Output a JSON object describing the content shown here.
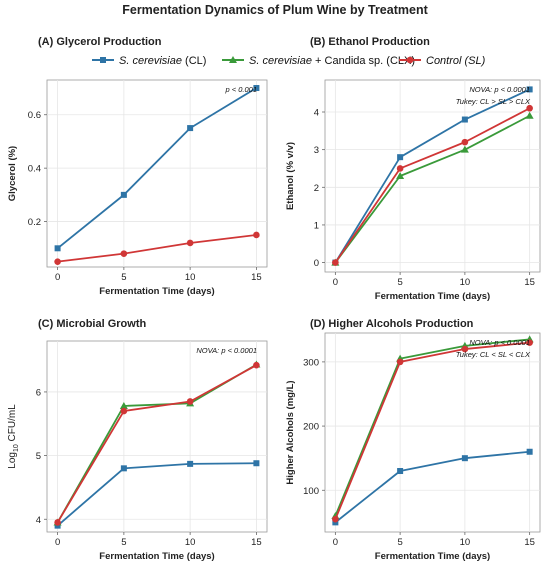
{
  "figure": {
    "title": "Fermentation Dynamics of Plum Wine by Treatment"
  },
  "legend": {
    "items": [
      {
        "italic": "S. cerevisiae",
        "rest": " (CL)",
        "color": "#2e74a6",
        "marker": "square"
      },
      {
        "italic": "S. cerevisiae",
        "rest": " + Candida sp. (CLX)",
        "color": "#3a9a3a",
        "marker": "triangle"
      },
      {
        "italic": "Control (SL)",
        "rest": "",
        "color": "#d03636",
        "marker": "circle"
      }
    ]
  },
  "chart_data": [
    {
      "panel": "A",
      "type": "line",
      "title": "Glycerol Production",
      "xlabel": "Fermentation Time (days)",
      "ylabel": "Glycerol (%)",
      "x": [
        0,
        5,
        10,
        15
      ],
      "xticks": [
        0,
        5,
        10,
        15
      ],
      "yticks": [
        0.2,
        0.4,
        0.6
      ],
      "ytick_labels": [
        "0.2",
        "0.4",
        "0.6"
      ],
      "xlim": [
        -0.8,
        15.8
      ],
      "ylim": [
        0.03,
        0.73
      ],
      "grid": true,
      "annotations": [
        "p < 0.001"
      ],
      "series": [
        {
          "name": "S. cerevisiae (CL)",
          "color": "#2e74a6",
          "marker": "square",
          "values": [
            0.1,
            0.3,
            0.55,
            0.7
          ]
        },
        {
          "name": "Control (SL)",
          "color": "#d03636",
          "marker": "circle",
          "values": [
            0.05,
            0.08,
            0.12,
            0.15
          ]
        }
      ]
    },
    {
      "panel": "B",
      "type": "line",
      "title": "Ethanol Production",
      "xlabel": "Fermentation Time (days)",
      "ylabel": "Ethanol (% v/v)",
      "x": [
        0,
        5,
        10,
        15
      ],
      "xticks": [
        0,
        5,
        10,
        15
      ],
      "yticks": [
        0,
        1,
        2,
        3,
        4
      ],
      "ytick_labels": [
        "0",
        "1",
        "2",
        "3",
        "4"
      ],
      "xlim": [
        -0.8,
        15.8
      ],
      "ylim": [
        -0.25,
        4.85
      ],
      "grid": true,
      "annotations": [
        "NOVA: p < 0.0001",
        "Tukey: CL > SL > CLX"
      ],
      "series": [
        {
          "name": "S. cerevisiae (CL)",
          "color": "#2e74a6",
          "marker": "square",
          "values": [
            0,
            2.8,
            3.8,
            4.6
          ]
        },
        {
          "name": "S. cerevisiae + Candida sp. (CLX)",
          "color": "#3a9a3a",
          "marker": "triangle",
          "values": [
            0,
            2.3,
            3.0,
            3.9
          ]
        },
        {
          "name": "Control (SL)",
          "color": "#d03636",
          "marker": "circle",
          "values": [
            0,
            2.5,
            3.2,
            4.1
          ]
        }
      ]
    },
    {
      "panel": "C",
      "type": "line",
      "title": "Microbial Growth",
      "xlabel": "Fermentation Time (days)",
      "ylabel": "Log10 CFU/mL",
      "ylabel_main": "Log",
      "ylabel_sub": "10",
      "ylabel_rest": " CFU/mL",
      "x": [
        0,
        5,
        10,
        15
      ],
      "xticks": [
        0,
        5,
        10,
        15
      ],
      "yticks": [
        4,
        5,
        6
      ],
      "ytick_labels": [
        "4",
        "5",
        "6"
      ],
      "xlim": [
        -0.8,
        15.8
      ],
      "ylim": [
        3.8,
        6.8
      ],
      "grid": true,
      "annotations": [
        "NOVA: p < 0.0001"
      ],
      "series": [
        {
          "name": "S. cerevisiae (CL)",
          "color": "#2e74a6",
          "marker": "square",
          "values": [
            3.9,
            4.8,
            4.87,
            4.88
          ]
        },
        {
          "name": "S. cerevisiae + Candida sp. (CLX)",
          "color": "#3a9a3a",
          "marker": "triangle",
          "values": [
            3.95,
            5.78,
            5.82,
            6.43
          ]
        },
        {
          "name": "Control (SL)",
          "color": "#d03636",
          "marker": "circle",
          "values": [
            3.95,
            5.7,
            5.85,
            6.42
          ]
        }
      ]
    },
    {
      "panel": "D",
      "type": "line",
      "title": "Higher Alcohols Production",
      "xlabel": "Fermentation Time (days)",
      "ylabel": "Higher Alcohols (mg/L)",
      "x": [
        0,
        5,
        10,
        15
      ],
      "xticks": [
        0,
        5,
        10,
        15
      ],
      "yticks": [
        100,
        200,
        300
      ],
      "ytick_labels": [
        "100",
        "200",
        "300"
      ],
      "xlim": [
        -0.8,
        15.8
      ],
      "ylim": [
        35,
        345
      ],
      "grid": true,
      "annotations": [
        "NOVA: p < 0.0001",
        "Tukey: CL < SL < CLX"
      ],
      "series": [
        {
          "name": "S. cerevisiae (CL)",
          "color": "#2e74a6",
          "marker": "square",
          "values": [
            50,
            130,
            150,
            160
          ]
        },
        {
          "name": "S. cerevisiae + Candida sp. (CLX)",
          "color": "#3a9a3a",
          "marker": "triangle",
          "values": [
            60,
            305,
            325,
            335
          ]
        },
        {
          "name": "Control (SL)",
          "color": "#d03636",
          "marker": "circle",
          "values": [
            55,
            300,
            320,
            330
          ]
        }
      ]
    }
  ]
}
